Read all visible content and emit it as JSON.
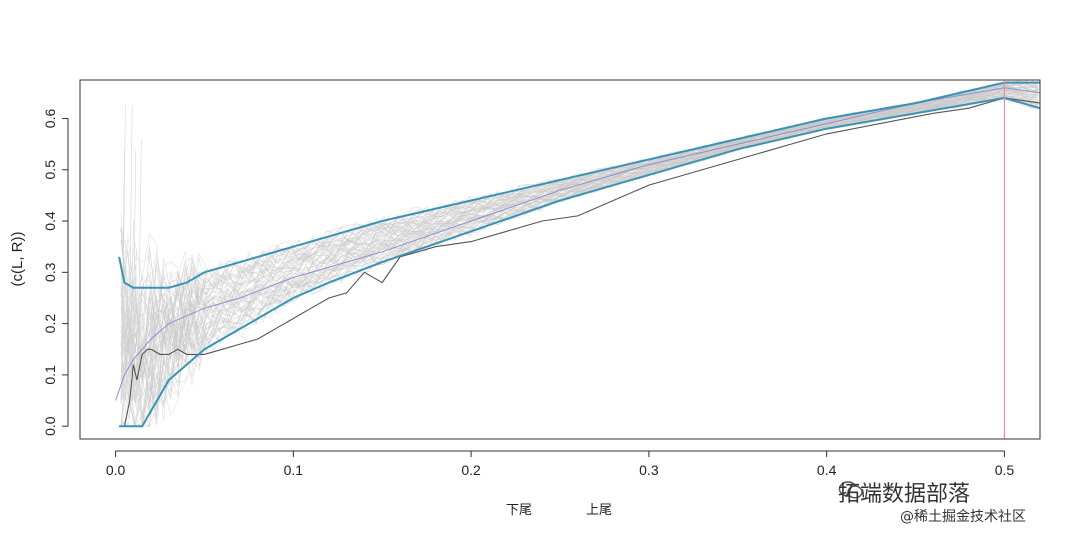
{
  "chart_data": {
    "type": "line",
    "title": "",
    "ylabel": "(c(L, R))",
    "xlabel_parts": [
      "下尾",
      "上尾"
    ],
    "xlim": [
      -0.02,
      0.52
    ],
    "ylim": [
      -0.025,
      0.675
    ],
    "x_ticks": [
      0.0,
      0.1,
      0.2,
      0.3,
      0.4,
      0.5
    ],
    "x_tick_labels": [
      "0.0",
      "0.1",
      "0.2",
      "0.3",
      "0.4",
      "0.5"
    ],
    "y_ticks": [
      0.0,
      0.1,
      0.2,
      0.3,
      0.4,
      0.5,
      0.6
    ],
    "y_tick_labels": [
      "0.0",
      "0.1",
      "0.2",
      "0.3",
      "0.4",
      "0.5",
      "0.6"
    ],
    "vline_x": 0.5,
    "colors": {
      "upper_band": "#3a93b5",
      "lower_band": "#3a93b5",
      "mean": "#8e8fd0",
      "empirical": "#555555",
      "simulations": "#c8c8c8",
      "vline": "#f08b9d"
    },
    "series": [
      {
        "x": [
          0.002,
          0.005,
          0.01,
          0.015,
          0.02,
          0.03,
          0.04,
          0.05,
          0.06,
          0.07,
          0.08,
          0.1,
          0.12,
          0.15,
          0.2,
          0.25,
          0.3,
          0.35,
          0.4,
          0.45,
          0.5,
          0.52
        ],
        "y": [
          0.33,
          0.28,
          0.27,
          0.27,
          0.27,
          0.27,
          0.28,
          0.3,
          0.31,
          0.32,
          0.33,
          0.35,
          0.37,
          0.4,
          0.44,
          0.48,
          0.52,
          0.56,
          0.6,
          0.63,
          0.67,
          0.67
        ]
      },
      {
        "x": [
          0.002,
          0.005,
          0.01,
          0.015,
          0.02,
          0.03,
          0.04,
          0.05,
          0.06,
          0.07,
          0.08,
          0.1,
          0.12,
          0.15,
          0.2,
          0.25,
          0.3,
          0.35,
          0.4,
          0.45,
          0.5,
          0.52
        ],
        "y": [
          0.0,
          0.0,
          0.0,
          0.0,
          0.03,
          0.09,
          0.12,
          0.15,
          0.17,
          0.19,
          0.21,
          0.25,
          0.28,
          0.32,
          0.38,
          0.44,
          0.49,
          0.54,
          0.58,
          0.61,
          0.64,
          0.62
        ]
      },
      {
        "x": [
          0.0,
          0.005,
          0.01,
          0.02,
          0.03,
          0.05,
          0.07,
          0.1,
          0.15,
          0.2,
          0.25,
          0.3,
          0.35,
          0.4,
          0.45,
          0.5,
          0.52
        ],
        "y": [
          0.05,
          0.1,
          0.13,
          0.17,
          0.2,
          0.23,
          0.25,
          0.29,
          0.34,
          0.4,
          0.46,
          0.51,
          0.55,
          0.59,
          0.63,
          0.66,
          0.65
        ]
      },
      {
        "x": [
          0.005,
          0.008,
          0.01,
          0.012,
          0.015,
          0.018,
          0.02,
          0.025,
          0.03,
          0.035,
          0.04,
          0.05,
          0.06,
          0.07,
          0.08,
          0.09,
          0.1,
          0.11,
          0.12,
          0.13,
          0.14,
          0.15,
          0.16,
          0.17,
          0.18,
          0.2,
          0.22,
          0.24,
          0.26,
          0.28,
          0.3,
          0.32,
          0.35,
          0.38,
          0.4,
          0.43,
          0.46,
          0.48,
          0.5,
          0.52
        ],
        "y": [
          0.0,
          0.05,
          0.12,
          0.09,
          0.14,
          0.15,
          0.15,
          0.14,
          0.14,
          0.15,
          0.14,
          0.14,
          0.15,
          0.16,
          0.17,
          0.19,
          0.21,
          0.23,
          0.25,
          0.26,
          0.3,
          0.28,
          0.33,
          0.34,
          0.35,
          0.36,
          0.38,
          0.4,
          0.41,
          0.44,
          0.47,
          0.49,
          0.52,
          0.55,
          0.57,
          0.59,
          0.61,
          0.62,
          0.64,
          0.63
        ]
      }
    ]
  },
  "watermark": {
    "main": "拓端数据部落",
    "sub": "@稀土掘金技术社区"
  }
}
